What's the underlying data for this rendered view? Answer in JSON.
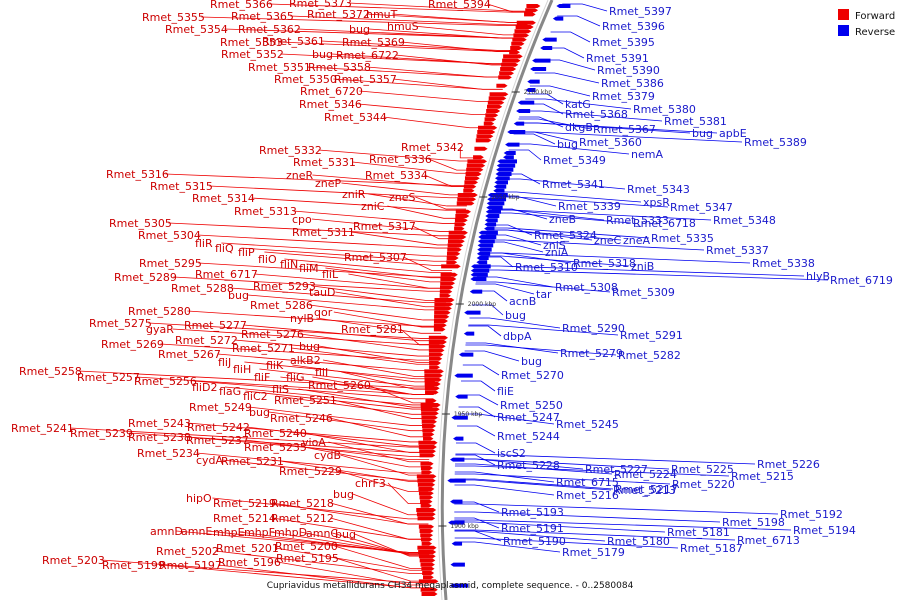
{
  "title": "Cupriavidus metallidurans CH34 megaplasmid, complete sequence. - 0..2580084",
  "legend": [
    {
      "label": "Forward",
      "color": "#ee0000"
    },
    {
      "label": "Reverse",
      "color": "#0000ee"
    }
  ],
  "colors": {
    "forward": "#ee0000",
    "reverse": "#0000ee",
    "forward_text": "#cc0000",
    "reverse_text": "#1a1acc",
    "backbone": "#888888"
  },
  "ticks": [
    "2100 kbp",
    "2050 kbp",
    "2000 kbp",
    "1950 kbp",
    "1900 kbp"
  ],
  "forward_labels": [
    "Rmet_5394",
    "Rmet_5373",
    "Rmet_5366",
    "Rmet_5372",
    "hmuT",
    "Rmet_5355",
    "Rmet_5365",
    "hmuS",
    "Rmet_5354",
    "Rmet_5362",
    "bug",
    "Rmet_5353",
    "Rmet_5361",
    "Rmet_5369",
    "Rmet_5352",
    "bug",
    "Rmet_6722",
    "Rmet_5351",
    "Rmet_5358",
    "Rmet_5350",
    "Rmet_5357",
    "Rmet_6720",
    "Rmet_5346",
    "Rmet_5344",
    "Rmet_5342",
    "Rmet_5332",
    "Rmet_5336",
    "Rmet_5331",
    "Rmet_5316",
    "zneR",
    "Rmet_5334",
    "Rmet_5315",
    "zneP",
    "zniR",
    "zneS",
    "Rmet_5314",
    "zniC",
    "Rmet_5313",
    "cpo",
    "Rmet_5317",
    "Rmet_5305",
    "Rmet_5311",
    "Rmet_5304",
    "fliR",
    "fliQ",
    "fliP",
    "fliO",
    "Rmet_5307",
    "fliN",
    "fliM",
    "Rmet_5295",
    "fliL",
    "Rmet_5289",
    "Rmet_6717",
    "Rmet_5293",
    "Rmet_5288",
    "tauD",
    "bug",
    "Rmet_5286",
    "qor",
    "Rmet_5280",
    "nylB",
    "Rmet_5275",
    "gyaR",
    "Rmet_5277",
    "Rmet_5281",
    "Rmet_5276",
    "Rmet_5272",
    "Rmet_5269",
    "Rmet_5271",
    "bug",
    "Rmet_5267",
    "alkB2",
    "fliJ",
    "fliK",
    "Rmet_5258",
    "fliH",
    "fliI",
    "Rmet_5257",
    "fliF",
    "fliG",
    "Rmet_5256",
    "Rmet_5260",
    "fliD2",
    "flaG",
    "fliS",
    "fliC2",
    "Rmet_5251",
    "Rmet_5249",
    "bug",
    "Rmet_5246",
    "Rmet_5243",
    "Rmet_5242",
    "Rmet_5241",
    "Rmet_5239",
    "Rmet_5238",
    "Rmet_5240",
    "Rmet_5237",
    "vioA",
    "Rmet_5235",
    "Rmet_5234",
    "cydB",
    "cydA",
    "Rmet_5231",
    "Rmet_5229",
    "chrF3",
    "bug",
    "hipO",
    "Rmet_5219",
    "Rmet_5218",
    "Rmet_5214",
    "Rmet_5212",
    "amnD",
    "amnE",
    "mhpE",
    "mhpF",
    "mhpD",
    "amnC",
    "bug",
    "Rmet_5201",
    "Rmet_5200",
    "Rmet_5202",
    "Rmet_5203",
    "Rmet_5199",
    "Rmet_5197",
    "Rmet_5196",
    "Rmet_5195"
  ],
  "reverse_labels": [
    "Rmet_5397",
    "Rmet_5396",
    "Rmet_5395",
    "Rmet_5391",
    "Rmet_5390",
    "Rmet_5386",
    "Rmet_5379",
    "Rmet_5380",
    "katG",
    "Rmet_5381",
    "Rmet_5368",
    "bug",
    "apbE",
    "dkgB",
    "Rmet_5367",
    "Rmet_5389",
    "bug",
    "Rmet_5360",
    "nemA",
    "Rmet_5349",
    "Rmet_5341",
    "Rmet_5343",
    "xpsR",
    "Rmet_5347",
    "Rmet_5339",
    "zneB",
    "Rmet_5333",
    "Rmet_6718",
    "Rmet_5348",
    "Rmet_5324",
    "zneC",
    "zneA",
    "Rmet_5335",
    "zniS",
    "zniA",
    "Rmet_5337",
    "Rmet_5318",
    "zniB",
    "Rmet_5338",
    "Rmet_5310",
    "hlyB",
    "Rmet_6719",
    "Rmet_5308",
    "Rmet_5309",
    "tar",
    "acnB",
    "bug",
    "Rmet_5290",
    "Rmet_5291",
    "dbpA",
    "Rmet_5279",
    "Rmet_5282",
    "bug",
    "Rmet_5270",
    "fliE",
    "Rmet_5250",
    "Rmet_5247",
    "Rmet_5245",
    "Rmet_5244",
    "iscS2",
    "Rmet_5228",
    "Rmet_5227",
    "Rmet_5224",
    "Rmet_5225",
    "Rmet_5226",
    "Rmet_6715",
    "Rmet_5217",
    "Rmet_5220",
    "Rmet_5215",
    "Rmet_5216",
    "Rmet_5213",
    "Rmet_5193",
    "Rmet_5192",
    "Rmet_5198",
    "Rmet_5191",
    "Rmet_5181",
    "Rmet_5194",
    "Rmet_5190",
    "Rmet_5180",
    "Rmet_6713",
    "Rmet_5187",
    "Rmet_5179"
  ]
}
